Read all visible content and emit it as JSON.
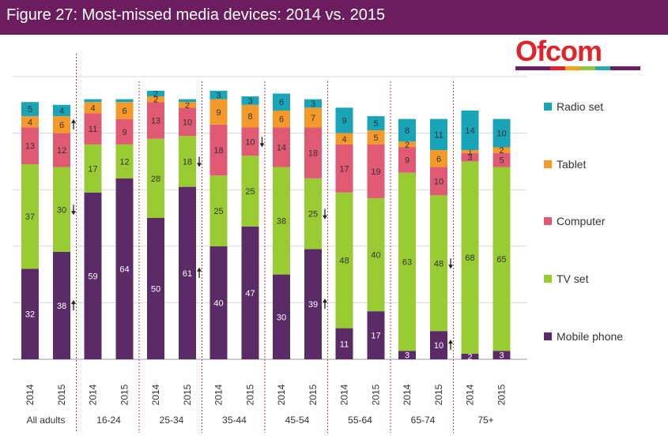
{
  "title": "Figure 27: Most-missed media devices: 2014 vs. 2015",
  "logo_text": "Ofcom",
  "colors": {
    "title_bar": "#6b1d5e",
    "mobile_phone": "#5b2b68",
    "tv_set": "#99cc33",
    "computer": "#e05a73",
    "tablet": "#f39a2b",
    "radio_set": "#1aa4b8",
    "divider": "#c0392b",
    "grid": "#d9d9d9"
  },
  "chart_data": {
    "type": "bar",
    "stacked": true,
    "title": "Most-missed media devices: 2014 vs. 2015",
    "ylim": [
      0,
      100
    ],
    "grid": true,
    "legend_position": "right",
    "groups": [
      "All adults",
      "16-24",
      "25-34",
      "35-44",
      "45-54",
      "55-64",
      "65-74",
      "75+"
    ],
    "bar_labels": [
      "2014",
      "2015"
    ],
    "series": [
      {
        "name": "Mobile phone",
        "color": "#5b2b68",
        "values": [
          32,
          38,
          59,
          64,
          50,
          61,
          40,
          47,
          30,
          39,
          11,
          17,
          3,
          10,
          2,
          3
        ]
      },
      {
        "name": "TV set",
        "color": "#99cc33",
        "values": [
          37,
          30,
          17,
          12,
          28,
          18,
          25,
          25,
          38,
          25,
          48,
          40,
          63,
          48,
          68,
          65
        ]
      },
      {
        "name": "Computer",
        "color": "#e05a73",
        "values": [
          13,
          12,
          11,
          9,
          13,
          10,
          18,
          10,
          14,
          18,
          17,
          19,
          9,
          10,
          3,
          5
        ]
      },
      {
        "name": "Tablet",
        "color": "#f39a2b",
        "values": [
          4,
          6,
          4,
          6,
          2,
          2,
          9,
          8,
          6,
          7,
          4,
          5,
          2,
          6,
          1,
          2
        ]
      },
      {
        "name": "Radio set",
        "color": "#1aa4b8",
        "values": [
          5,
          4,
          1,
          1,
          2,
          1,
          3,
          3,
          6,
          3,
          9,
          5,
          8,
          11,
          14,
          10
        ]
      }
    ],
    "legend_order": [
      "Radio set",
      "Tablet",
      "Computer",
      "TV set",
      "Mobile phone"
    ],
    "hidden_labels": [
      {
        "bar": 2,
        "series": "Radio set"
      },
      {
        "bar": 3,
        "series": "Radio set"
      },
      {
        "bar": 5,
        "series": "Radio set"
      }
    ],
    "annotations": [
      {
        "bar": 1,
        "series": "Tablet",
        "direction": "up"
      },
      {
        "bar": 1,
        "series": "TV set",
        "direction": "down"
      },
      {
        "bar": 1,
        "series": "Mobile phone",
        "direction": "up"
      },
      {
        "bar": 5,
        "series": "TV set",
        "direction": "down"
      },
      {
        "bar": 5,
        "series": "Mobile phone",
        "direction": "up"
      },
      {
        "bar": 7,
        "series": "Computer",
        "direction": "down"
      },
      {
        "bar": 9,
        "series": "TV set",
        "direction": "down"
      },
      {
        "bar": 9,
        "series": "Mobile phone",
        "direction": "up"
      },
      {
        "bar": 13,
        "series": "TV set",
        "direction": "down"
      },
      {
        "bar": 13,
        "series": "Mobile phone",
        "direction": "up"
      }
    ]
  }
}
